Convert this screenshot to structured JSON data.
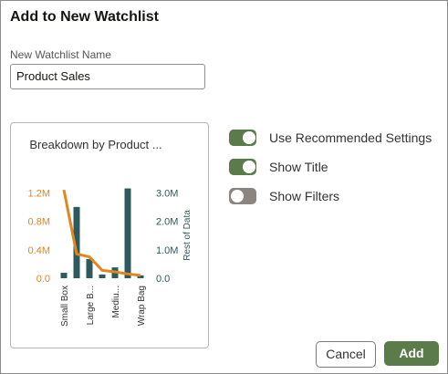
{
  "title": "Add to New Watchlist",
  "name_label": "New Watchlist Name",
  "name_value": "Product Sales",
  "settings": [
    {
      "label": "Use Recommended Settings",
      "on": true
    },
    {
      "label": "Show Title",
      "on": true
    },
    {
      "label": "Show Filters",
      "on": false
    }
  ],
  "buttons": {
    "cancel": "Cancel",
    "add": "Add"
  },
  "chart_data": {
    "type": "bar_line",
    "title": "Breakdown by Product ...",
    "categories": [
      "Small Box",
      null,
      "Large B...",
      null,
      "Mediu...",
      null,
      "Wrap Bag"
    ],
    "series": [
      {
        "type": "bar",
        "axis": "y2",
        "color": "#2d5a5c",
        "values": [
          190000,
          2500000,
          670000,
          130000,
          380000,
          3150000,
          100000
        ]
      },
      {
        "type": "line",
        "axis": "y",
        "color": "#e0861d",
        "values": [
          1240000,
          340000,
          300000,
          110000,
          90000,
          60000,
          40000
        ]
      }
    ],
    "ylim": [
      0,
      1280000
    ],
    "yticks": [
      {
        "value": 0,
        "label": "0.0"
      },
      {
        "value": 400000,
        "label": "0.4M"
      },
      {
        "value": 800000,
        "label": "0.8M"
      },
      {
        "value": 1200000,
        "label": "1.2M"
      }
    ],
    "y2lim": [
      0,
      3200000
    ],
    "y2ticks": [
      {
        "value": 0,
        "label": "0.0"
      },
      {
        "value": 1000000,
        "label": "1.0M"
      },
      {
        "value": 2000000,
        "label": "2.0M"
      },
      {
        "value": 3000000,
        "label": "3.0M"
      }
    ],
    "y2label": "Rest of Data"
  }
}
